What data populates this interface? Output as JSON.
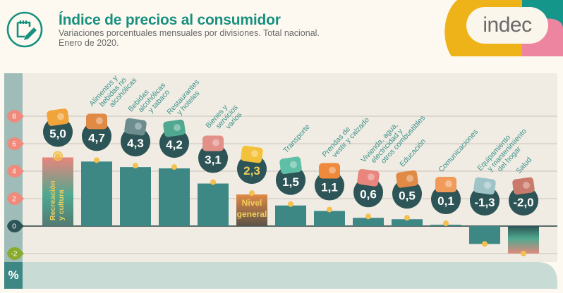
{
  "header": {
    "title": "Índice de precios al consumidor",
    "subtitle_line1": "Variaciones porcentuales mensuales por divisiones. Total nacional.",
    "subtitle_line2": "Enero de 2020.",
    "icon": "notepad-pencil-icon"
  },
  "logo": {
    "text": "indec"
  },
  "colors": {
    "teal": "#3d8785",
    "dark_teal": "#2d5456",
    "title_green": "#18907f",
    "axis_bar": "#9fbcb8",
    "footer": "#c8dbd5",
    "plot_bg": "#f0ece4",
    "tick_pos": "#ef8a7c",
    "tick_zero": "#2d5456",
    "tick_neg": "#8aaa2c",
    "dot": "#f4c04e",
    "label_green": "#3b9189",
    "yellow_text": "#f0cf5c",
    "logo_yellow": "#efb31a",
    "logo_teal": "#14968a",
    "logo_pink": "#ee85a0"
  },
  "chart_data": {
    "type": "bar",
    "title": "Índice de precios al consumidor",
    "subtitle": "Variaciones porcentuales mensuales por divisiones. Total nacional. Enero de 2020.",
    "xlabel": "",
    "ylabel": "%",
    "ylim": [
      -2.7,
      9.5
    ],
    "yticks": [
      8,
      6,
      4,
      2,
      0,
      -2
    ],
    "ytick_labels": [
      "8",
      "6",
      "4",
      "2",
      "0",
      "-2"
    ],
    "grid": true,
    "categories": [
      "Recreación y cultura",
      "Alimentos y bebidas no alcohólicas",
      "Bebidas alcohólicas y tabaco",
      "Restaurantes y hoteles",
      "Bienes y servicios varios",
      "Nivel general",
      "Transporte",
      "Prendas de vestir y calzado",
      "Vivienda, agua, electricidad y otros combustibles",
      "Educación",
      "Comunicaciones",
      "Equipamiento y mantenimiento del hogar",
      "Salud"
    ],
    "category_lines": [
      [
        "Recreación",
        "y cultura"
      ],
      [
        "Alimentos y",
        "bebidas no",
        "alcohólicas"
      ],
      [
        "Bebidas",
        "alcohólicas",
        "y tabaco"
      ],
      [
        "Restaurantes",
        "y hoteles"
      ],
      [
        "Bienes y",
        "servicios",
        "varios"
      ],
      [
        "Nivel",
        "general"
      ],
      [
        "Transporte"
      ],
      [
        "Prendas de",
        "vestir y calzado"
      ],
      [
        "Vivienda, agua,",
        "electricidad y",
        "otros combustibles"
      ],
      [
        "Educación"
      ],
      [
        "Comunicaciones"
      ],
      [
        "Equipamiento",
        "y mantenimiento",
        "del hogar"
      ],
      [
        "Salud"
      ]
    ],
    "values": [
      5.0,
      4.7,
      4.3,
      4.2,
      3.1,
      2.3,
      1.5,
      1.1,
      0.6,
      0.5,
      0.1,
      -1.3,
      -2.0
    ],
    "value_labels": [
      "5,0",
      "4,7",
      "4,3",
      "4,2",
      "3,1",
      "2,3",
      "1,5",
      "1,1",
      "0,6",
      "0,5",
      "0,1",
      "-1,3",
      "-2,0"
    ],
    "highlight": {
      "max": "Recreación y cultura",
      "min": "Salud",
      "total": "Nivel general"
    },
    "icons": [
      "sun-umbrella-icon",
      "roast-chicken-icon",
      "wine-bottle-icon",
      "plate-travel-icon",
      "scissors-comb-icon",
      "shopping-basket-icon",
      "bus-icon",
      "t-shirt-icon",
      "light-bulb-icon",
      "book-icon",
      "smartphone-icon",
      "washing-machine-icon",
      "first-aid-icon"
    ]
  }
}
